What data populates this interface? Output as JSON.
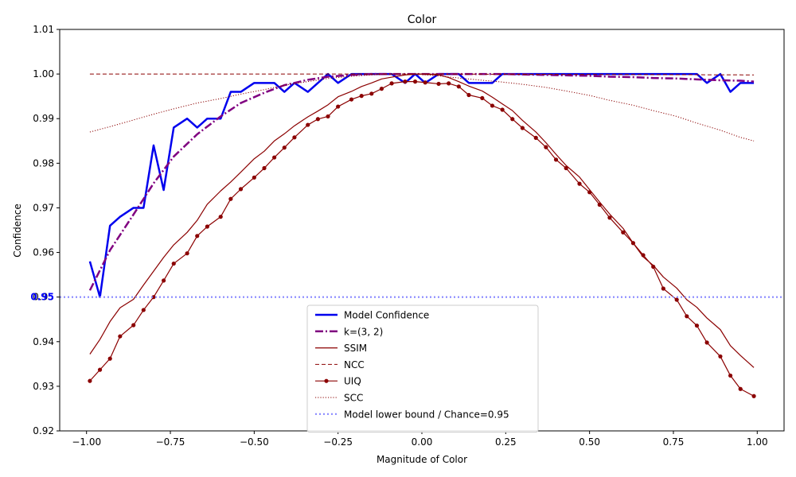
{
  "chart_data": {
    "type": "line",
    "title": "Color",
    "xlabel": "Magnitude of Color",
    "ylabel": "Confidence",
    "xlim": [
      -1.08,
      1.08
    ],
    "ylim": [
      0.92,
      1.01
    ],
    "x_ticks": [
      -1.0,
      -0.75,
      -0.5,
      -0.25,
      0.0,
      0.25,
      0.5,
      0.75,
      1.0
    ],
    "x_tick_labels": [
      "−1.00",
      "−0.75",
      "−0.50",
      "−0.25",
      "0.00",
      "0.25",
      "0.50",
      "0.75",
      "1.00"
    ],
    "y_ticks": [
      0.92,
      0.93,
      0.94,
      0.95,
      0.96,
      0.97,
      0.98,
      0.99,
      1.0,
      1.01
    ],
    "y_tick_labels": [
      "0.92",
      "0.93",
      "0.94",
      "0.95",
      "0.96",
      "0.97",
      "0.98",
      "0.99",
      "1.00",
      "1.01"
    ],
    "highlight_tick": {
      "value": 0.95,
      "label": "0.95",
      "color": "#0000ff"
    },
    "legend_position": "lower-center",
    "grid": false,
    "series": [
      {
        "name": "Model Confidence",
        "color": "#0000ee",
        "width": 2.5,
        "dash": "",
        "marker": false,
        "x": [
          -0.99,
          -0.96,
          -0.93,
          -0.9,
          -0.86,
          -0.83,
          -0.8,
          -0.77,
          -0.74,
          -0.7,
          -0.67,
          -0.64,
          -0.6,
          -0.57,
          -0.54,
          -0.5,
          -0.47,
          -0.44,
          -0.41,
          -0.38,
          -0.34,
          -0.31,
          -0.28,
          -0.25,
          -0.21,
          -0.18,
          -0.15,
          -0.12,
          -0.09,
          -0.05,
          -0.02,
          0.01,
          0.05,
          0.08,
          0.11,
          0.14,
          0.18,
          0.21,
          0.24,
          0.27,
          0.3,
          0.34,
          0.37,
          0.4,
          0.43,
          0.47,
          0.5,
          0.53,
          0.56,
          0.6,
          0.63,
          0.66,
          0.69,
          0.72,
          0.76,
          0.79,
          0.82,
          0.85,
          0.89,
          0.92,
          0.95,
          0.99
        ],
        "y": [
          0.958,
          0.95,
          0.966,
          0.968,
          0.97,
          0.97,
          0.984,
          0.974,
          0.988,
          0.99,
          0.988,
          0.99,
          0.99,
          0.996,
          0.996,
          0.998,
          0.998,
          0.998,
          0.996,
          0.998,
          0.996,
          0.998,
          1.0,
          0.998,
          1.0,
          1.0,
          1.0,
          1.0,
          1.0,
          0.998,
          1.0,
          0.998,
          1.0,
          1.0,
          1.0,
          0.998,
          0.998,
          0.998,
          1.0,
          1.0,
          1.0,
          1.0,
          1.0,
          1.0,
          1.0,
          1.0,
          1.0,
          1.0,
          1.0,
          1.0,
          1.0,
          1.0,
          1.0,
          1.0,
          1.0,
          1.0,
          1.0,
          0.998,
          1.0,
          0.996,
          0.998,
          0.998
        ]
      },
      {
        "name": "k=(3, 2)",
        "color": "#800080",
        "width": 2.5,
        "dash": "10,3,2,3",
        "marker": false,
        "x": [
          -0.99,
          -0.93,
          -0.86,
          -0.8,
          -0.74,
          -0.67,
          -0.6,
          -0.54,
          -0.47,
          -0.41,
          -0.34,
          -0.28,
          -0.21,
          -0.15,
          -0.09,
          -0.02,
          0.05,
          0.11,
          0.18,
          0.24,
          0.3,
          0.37,
          0.43,
          0.5,
          0.56,
          0.63,
          0.69,
          0.76,
          0.82,
          0.89,
          0.95,
          0.99
        ],
        "y": [
          0.9515,
          0.9605,
          0.9685,
          0.9755,
          0.9815,
          0.9865,
          0.9905,
          0.9935,
          0.9958,
          0.9975,
          0.9987,
          0.9994,
          0.9998,
          1.0,
          1.0,
          1.0,
          1.0,
          1.0,
          1.0,
          1.0,
          0.9999,
          0.9998,
          0.9997,
          0.9996,
          0.9994,
          0.9993,
          0.9991,
          0.999,
          0.9988,
          0.9986,
          0.9985,
          0.9983
        ]
      },
      {
        "name": "SSIM",
        "color": "#8b0000",
        "width": 1.2,
        "dash": "",
        "marker": false,
        "x": [
          -0.99,
          -0.96,
          -0.93,
          -0.9,
          -0.86,
          -0.83,
          -0.8,
          -0.77,
          -0.74,
          -0.7,
          -0.67,
          -0.64,
          -0.6,
          -0.57,
          -0.54,
          -0.5,
          -0.47,
          -0.44,
          -0.41,
          -0.38,
          -0.34,
          -0.31,
          -0.28,
          -0.25,
          -0.21,
          -0.18,
          -0.15,
          -0.12,
          -0.09,
          -0.05,
          -0.02,
          0.01,
          0.05,
          0.08,
          0.11,
          0.14,
          0.18,
          0.21,
          0.24,
          0.27,
          0.3,
          0.34,
          0.37,
          0.4,
          0.43,
          0.47,
          0.5,
          0.53,
          0.56,
          0.6,
          0.63,
          0.66,
          0.69,
          0.72,
          0.76,
          0.79,
          0.82,
          0.85,
          0.89,
          0.92,
          0.95,
          0.99
        ],
        "y": [
          0.9372,
          0.9405,
          0.9445,
          0.9476,
          0.9495,
          0.9527,
          0.9558,
          0.9589,
          0.9617,
          0.9645,
          0.9672,
          0.9708,
          0.9738,
          0.9758,
          0.978,
          0.981,
          0.9827,
          0.985,
          0.9866,
          0.9884,
          0.9904,
          0.9917,
          0.9931,
          0.9949,
          0.9961,
          0.9972,
          0.998,
          0.9989,
          0.9993,
          0.9998,
          1.0,
          1.0,
          0.9998,
          0.9992,
          0.9983,
          0.9973,
          0.9962,
          0.9948,
          0.9933,
          0.9918,
          0.9896,
          0.987,
          0.9846,
          0.982,
          0.9795,
          0.9769,
          0.9741,
          0.9713,
          0.9686,
          0.9654,
          0.9621,
          0.959,
          0.9571,
          0.9545,
          0.952,
          0.9494,
          0.9477,
          0.9453,
          0.9427,
          0.9391,
          0.9369,
          0.9342
        ]
      },
      {
        "name": "NCC",
        "color": "#8b0000",
        "width": 1.0,
        "dash": "5,3",
        "marker": false,
        "x": [
          -0.99,
          -0.5,
          0.0,
          0.5,
          0.99
        ],
        "y": [
          1.0,
          1.0,
          1.0,
          0.9999,
          0.9998
        ]
      },
      {
        "name": "UIQ",
        "color": "#8b0000",
        "width": 1.2,
        "dash": "",
        "marker": true,
        "x": [
          -0.99,
          -0.96,
          -0.93,
          -0.9,
          -0.86,
          -0.83,
          -0.8,
          -0.77,
          -0.74,
          -0.7,
          -0.67,
          -0.64,
          -0.6,
          -0.57,
          -0.54,
          -0.5,
          -0.47,
          -0.44,
          -0.41,
          -0.38,
          -0.34,
          -0.31,
          -0.28,
          -0.25,
          -0.21,
          -0.18,
          -0.15,
          -0.12,
          -0.09,
          -0.05,
          -0.02,
          0.01,
          0.05,
          0.08,
          0.11,
          0.14,
          0.18,
          0.21,
          0.24,
          0.27,
          0.3,
          0.34,
          0.37,
          0.4,
          0.43,
          0.47,
          0.5,
          0.53,
          0.56,
          0.6,
          0.63,
          0.66,
          0.69,
          0.72,
          0.76,
          0.79,
          0.82,
          0.85,
          0.89,
          0.92,
          0.95,
          0.99
        ],
        "y": [
          0.9312,
          0.9337,
          0.9362,
          0.9412,
          0.9437,
          0.9471,
          0.95,
          0.9537,
          0.9575,
          0.9598,
          0.9637,
          0.9658,
          0.968,
          0.972,
          0.9742,
          0.9768,
          0.9789,
          0.9813,
          0.9835,
          0.9858,
          0.9886,
          0.9899,
          0.9905,
          0.9927,
          0.9943,
          0.9951,
          0.9956,
          0.9967,
          0.9979,
          0.9983,
          0.9983,
          0.9981,
          0.9978,
          0.9979,
          0.9972,
          0.9953,
          0.9946,
          0.9929,
          0.992,
          0.9899,
          0.9879,
          0.9857,
          0.9836,
          0.9808,
          0.9789,
          0.9754,
          0.9735,
          0.9707,
          0.9678,
          0.9645,
          0.9621,
          0.9594,
          0.9568,
          0.9519,
          0.9494,
          0.9457,
          0.9436,
          0.9398,
          0.9367,
          0.9324,
          0.9294,
          0.9278
        ]
      },
      {
        "name": "SCC",
        "color": "#8b0000",
        "width": 1.0,
        "dash": "1.2,2",
        "marker": false,
        "x": [
          -0.99,
          -0.93,
          -0.86,
          -0.8,
          -0.74,
          -0.67,
          -0.6,
          -0.54,
          -0.47,
          -0.41,
          -0.34,
          -0.28,
          -0.21,
          -0.15,
          -0.09,
          -0.02,
          0.05,
          0.11,
          0.18,
          0.24,
          0.3,
          0.37,
          0.43,
          0.5,
          0.56,
          0.63,
          0.69,
          0.76,
          0.82,
          0.89,
          0.95,
          0.99
        ],
        "y": [
          0.987,
          0.9882,
          0.9897,
          0.991,
          0.9922,
          0.9935,
          0.9945,
          0.9955,
          0.9965,
          0.9975,
          0.9983,
          0.999,
          0.9995,
          0.9998,
          1.0,
          1.0,
          0.9996,
          0.9991,
          0.9986,
          0.9982,
          0.9977,
          0.997,
          0.9962,
          0.9952,
          0.9941,
          0.993,
          0.9918,
          0.9905,
          0.989,
          0.9874,
          0.9858,
          0.985
        ]
      },
      {
        "name": "Model lower bound / Chance=0.95",
        "color": "#8888ff",
        "width": 2.2,
        "dash": "2,3",
        "marker": false,
        "hline": 0.95
      }
    ]
  }
}
